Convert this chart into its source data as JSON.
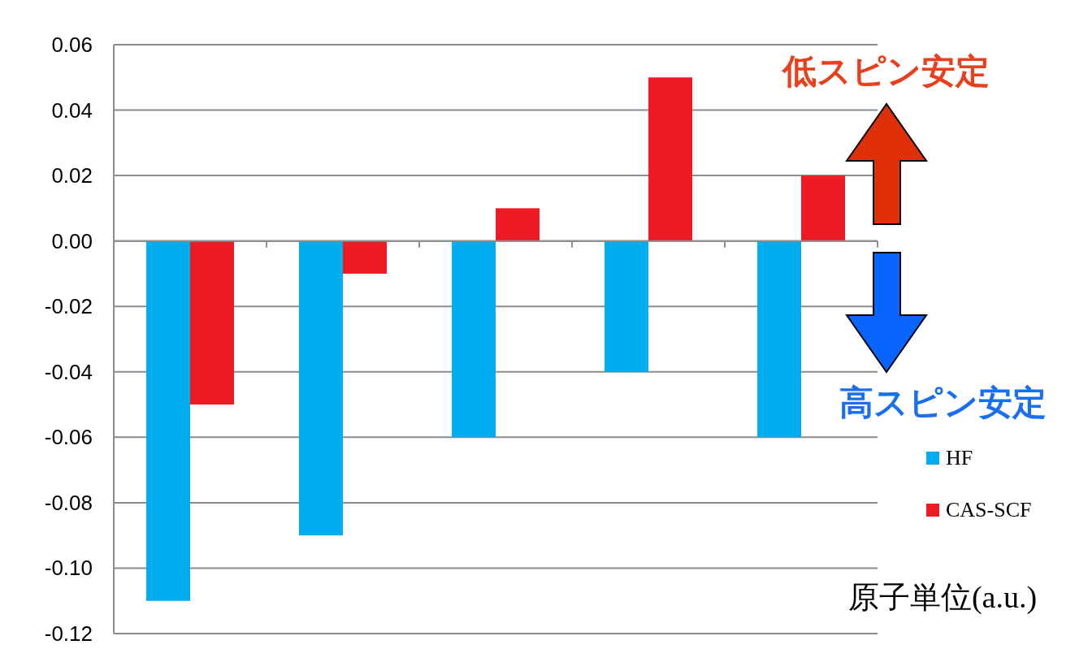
{
  "chart_data": {
    "type": "bar",
    "categories": [
      null,
      null,
      null,
      null,
      null
    ],
    "series": [
      {
        "name": "HF",
        "color": "#00adef",
        "values": [
          -0.11,
          -0.09,
          -0.06,
          -0.04,
          -0.06
        ]
      },
      {
        "name": "CAS-SCF",
        "color": "#ed1c24",
        "values": [
          -0.05,
          -0.01,
          0.01,
          0.05,
          0.02
        ]
      }
    ],
    "ylim": [
      -0.12,
      0.06
    ],
    "yticks": [
      {
        "value": 0.06,
        "label": "0.06"
      },
      {
        "value": 0.04,
        "label": "0.04"
      },
      {
        "value": 0.02,
        "label": "0.02"
      },
      {
        "value": 0,
        "label": "0.00"
      },
      {
        "value": -0.02,
        "label": "-0.02"
      },
      {
        "value": -0.04,
        "label": "-0.04"
      },
      {
        "value": -0.06,
        "label": "-0.06"
      },
      {
        "value": -0.08,
        "label": "-0.08"
      },
      {
        "value": -0.1,
        "label": "-0.10"
      },
      {
        "value": -0.12,
        "label": "-0.12"
      }
    ],
    "grid": "y",
    "legend": "right",
    "annotations": [
      "低スピン安定",
      "高スピン安定",
      "原子単位(a.u.)"
    ]
  }
}
